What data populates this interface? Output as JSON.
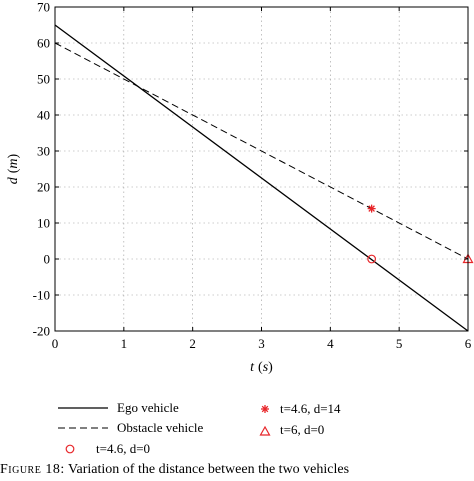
{
  "chart_data": {
    "type": "line",
    "title": "",
    "xlabel": {
      "var": "t",
      "unit": "s"
    },
    "ylabel": {
      "var": "d",
      "unit": "m"
    },
    "xlim": [
      0,
      6
    ],
    "ylim": [
      -20,
      70
    ],
    "xticks": [
      0,
      1,
      2,
      3,
      4,
      5,
      6
    ],
    "yticks": [
      -20,
      -10,
      0,
      10,
      20,
      30,
      40,
      50,
      60,
      70
    ],
    "grid": true,
    "legend_position": "bottom",
    "series": [
      {
        "name": "Ego vehicle",
        "style": "solid",
        "color": "#000000",
        "x": [
          0,
          6
        ],
        "y": [
          65,
          -20
        ]
      },
      {
        "name": "Obstacle vehicle",
        "style": "dashed",
        "color": "#000000",
        "x": [
          0,
          6
        ],
        "y": [
          60,
          0
        ]
      }
    ],
    "markers": [
      {
        "name": "t=4.6, d=0",
        "shape": "circle",
        "color": "#e8262a",
        "x": 4.6,
        "y": 0
      },
      {
        "name": "t=4.6, d=14",
        "shape": "asterisk",
        "color": "#e8262a",
        "x": 4.6,
        "y": 14
      },
      {
        "name": "t=6, d=0",
        "shape": "triangle",
        "color": "#e8262a",
        "x": 6,
        "y": 0
      }
    ]
  },
  "caption": {
    "label": "Figure 18:",
    "text": "Variation of the distance between the two vehicles"
  }
}
